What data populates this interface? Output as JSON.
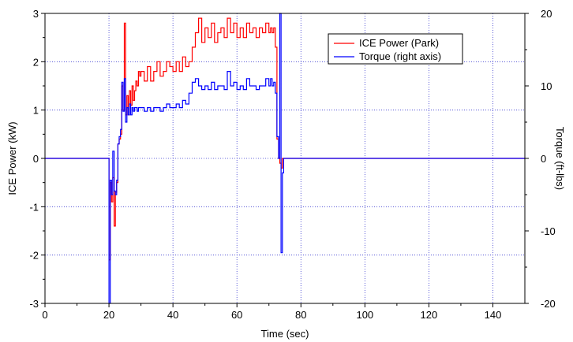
{
  "chart_data": {
    "type": "line",
    "title": "",
    "xlabel": "Time (sec)",
    "ylabel": "ICE Power (kW)",
    "y2label": "Torque (ft-lbs)",
    "xlim": [
      0,
      150
    ],
    "ylim": [
      -3,
      3
    ],
    "y2lim": [
      -20,
      20
    ],
    "xticks": [
      0,
      20,
      40,
      60,
      80,
      100,
      120,
      140
    ],
    "yticks": [
      -3,
      -2,
      -1,
      0,
      1,
      2,
      3
    ],
    "y2ticks": [
      -20,
      -10,
      0,
      10,
      20
    ],
    "grid": true,
    "legend_position": "top-right",
    "series": [
      {
        "name": "ICE Power (Park)",
        "axis": "left",
        "color": "#ff0000",
        "x": [
          0,
          10,
          19.5,
          20.0,
          20.4,
          20.8,
          21.2,
          21.6,
          22.0,
          22.4,
          22.8,
          23.2,
          23.6,
          24.0,
          24.4,
          24.8,
          25.2,
          25.6,
          26.0,
          26.4,
          26.8,
          27.2,
          27.6,
          28.0,
          28.4,
          28.8,
          29.2,
          29.6,
          30,
          31,
          32,
          33,
          34,
          35,
          36,
          37,
          38,
          39,
          40,
          41,
          42,
          43,
          44,
          45,
          46,
          47,
          48,
          49,
          50,
          51,
          52,
          53,
          54,
          55,
          56,
          57,
          58,
          59,
          60,
          61,
          62,
          63,
          64,
          65,
          66,
          67,
          68,
          69,
          70,
          70.5,
          71,
          71.5,
          72,
          72.5,
          73,
          73.4,
          73.8,
          74.2,
          75,
          90,
          110,
          130,
          150
        ],
        "y": [
          0,
          0,
          0,
          -2.1,
          -0.5,
          -0.9,
          -0.4,
          -1.4,
          -0.7,
          -0.5,
          0.3,
          0.4,
          0.5,
          1.5,
          1.0,
          2.8,
          0.9,
          1.3,
          0.9,
          1.4,
          1.1,
          1.5,
          1.2,
          1.4,
          1.6,
          1.5,
          1.8,
          1.7,
          1.8,
          1.6,
          1.9,
          1.6,
          1.8,
          2.0,
          1.7,
          1.8,
          2.0,
          1.9,
          1.8,
          2.0,
          1.8,
          2.1,
          1.9,
          2.0,
          2.3,
          2.6,
          2.9,
          2.4,
          2.7,
          2.5,
          2.8,
          2.4,
          2.6,
          2.7,
          2.5,
          2.9,
          2.6,
          2.8,
          2.5,
          2.7,
          2.5,
          2.8,
          2.6,
          2.7,
          2.5,
          2.7,
          2.6,
          2.8,
          2.6,
          2.7,
          2.6,
          2.7,
          2.3,
          0.4,
          0.0,
          -0.1,
          -0.2,
          0.0,
          0,
          0,
          0,
          0,
          0
        ]
      },
      {
        "name": "Torque (right axis)",
        "axis": "right",
        "color": "#0000ff",
        "x": [
          0,
          10,
          19.5,
          20.0,
          20.4,
          20.8,
          21.2,
          21.6,
          22.0,
          22.4,
          22.8,
          23.2,
          23.6,
          24.0,
          24.4,
          24.8,
          25.2,
          25.6,
          26.0,
          26.4,
          26.8,
          27.2,
          27.6,
          28.0,
          28.4,
          28.8,
          29.2,
          29.6,
          30,
          31,
          32,
          33,
          34,
          35,
          36,
          37,
          38,
          39,
          40,
          41,
          42,
          43,
          44,
          45,
          46,
          47,
          48,
          49,
          50,
          51,
          52,
          53,
          54,
          55,
          56,
          57,
          58,
          59,
          60,
          61,
          62,
          63,
          64,
          65,
          66,
          67,
          68,
          69,
          70,
          70.5,
          71,
          71.5,
          72,
          72.5,
          73,
          73.4,
          73.8,
          74.2,
          74.6,
          75,
          90,
          110,
          130,
          150
        ],
        "y": [
          0,
          0,
          0,
          -20.0,
          -3.0,
          -5.0,
          1.0,
          -4.5,
          -5.0,
          -3.0,
          2.0,
          3.0,
          4.0,
          10.5,
          6.5,
          11.0,
          5.0,
          7.0,
          6.0,
          7.5,
          6.0,
          7.0,
          6.5,
          7.0,
          7.0,
          6.5,
          7.0,
          7.0,
          7.0,
          6.5,
          7.0,
          6.5,
          7.0,
          7.0,
          6.5,
          7.0,
          7.5,
          7.0,
          7.0,
          7.5,
          7.0,
          8.0,
          7.5,
          9.0,
          10.5,
          11.0,
          10.0,
          9.5,
          10.0,
          9.5,
          10.5,
          9.5,
          10.0,
          10.0,
          9.5,
          12.0,
          10.0,
          10.5,
          9.5,
          10.0,
          9.5,
          11.0,
          10.0,
          10.0,
          9.5,
          10.0,
          10.0,
          11.0,
          10.0,
          11.0,
          10.0,
          10.5,
          9.0,
          3.0,
          0.0,
          20.0,
          -13.0,
          -2.0,
          0.0,
          0,
          0,
          0,
          0,
          0
        ]
      }
    ]
  }
}
